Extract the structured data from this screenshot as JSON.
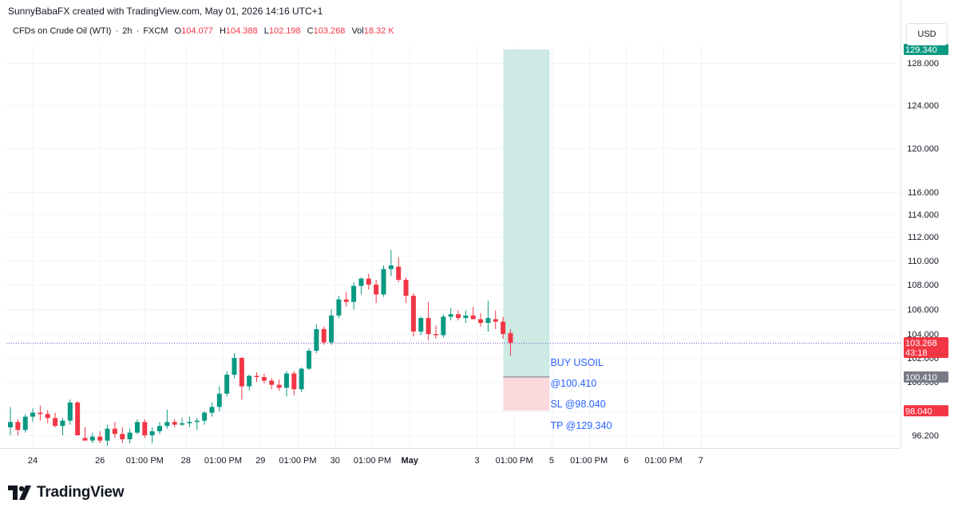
{
  "header": {
    "title": "SunnyBabaFX created with TradingView.com, May 01, 2026 14:16 UTC+1"
  },
  "legend": {
    "symbol": "CFDs on Crude Oil (WTI)",
    "interval": "2h",
    "exchange": "FXCM",
    "open_label": "O",
    "open": "104.077",
    "high_label": "H",
    "high": "104.388",
    "low_label": "L",
    "low": "102.198",
    "close_label": "C",
    "close": "103.268",
    "vol_label": "Vol",
    "vol": "18.32 K"
  },
  "currency_button": "USD",
  "brand": {
    "name": "TradingView"
  },
  "colors": {
    "up": "#089981",
    "down": "#f23645",
    "target_zone": "#cdeae4",
    "stop_zone": "#fbd9dc",
    "annotation": "#2962ff",
    "price_line": "#7e57c2"
  },
  "chart_data": {
    "type": "candlestick",
    "symbol": "USOIL",
    "y_ticks": [
      96.2,
      98.0,
      100.0,
      102.0,
      104.0,
      106.0,
      108.0,
      110.0,
      112.0,
      114.0,
      116.0,
      120.0,
      124.0,
      128.0
    ],
    "y_tick_labels": [
      "96.200",
      "98.000",
      "100.000",
      "102.000",
      "104.000",
      "106.000",
      "108.000",
      "110.000",
      "112.000",
      "114.000",
      "116.000",
      "120.000",
      "124.000",
      "128.000"
    ],
    "x_ticks": [
      {
        "label": "24",
        "bar": 3
      },
      {
        "label": "26",
        "bar": 12
      },
      {
        "label": "01:00 PM",
        "bar": 18
      },
      {
        "label": "28",
        "bar": 23.5
      },
      {
        "label": "01:00 PM",
        "bar": 28.5
      },
      {
        "label": "29",
        "bar": 33.5
      },
      {
        "label": "01:00 PM",
        "bar": 38.5
      },
      {
        "label": "30",
        "bar": 43.5
      },
      {
        "label": "01:00 PM",
        "bar": 48.5
      },
      {
        "label": "May",
        "bar": 53.5,
        "bold": true
      },
      {
        "label": "3",
        "bar": 62.5
      },
      {
        "label": "01:00 PM",
        "bar": 67.5
      },
      {
        "label": "5",
        "bar": 72.5
      },
      {
        "label": "01:00 PM",
        "bar": 77.5
      },
      {
        "label": "6",
        "bar": 82.5
      },
      {
        "label": "01:00 PM",
        "bar": 87.5
      },
      {
        "label": "7",
        "bar": 92.5
      }
    ],
    "candles": [
      [
        96.8,
        98.3,
        96.2,
        97.2
      ],
      [
        97.2,
        97.4,
        96.2,
        96.6
      ],
      [
        96.6,
        97.8,
        96.4,
        97.6
      ],
      [
        97.6,
        98.2,
        97.2,
        97.9
      ],
      [
        97.9,
        98.4,
        97.3,
        97.8
      ],
      [
        97.8,
        98.1,
        97.1,
        97.5
      ],
      [
        97.5,
        97.9,
        96.8,
        96.9
      ],
      [
        96.9,
        97.5,
        96.2,
        97.3
      ],
      [
        97.3,
        98.8,
        97.0,
        98.6
      ],
      [
        98.6,
        98.7,
        96.2,
        96.2
      ],
      [
        96.0,
        96.8,
        95.8,
        95.8
      ],
      [
        95.8,
        96.4,
        95.6,
        96.1
      ],
      [
        96.1,
        96.5,
        95.6,
        95.8
      ],
      [
        95.8,
        97.0,
        95.4,
        96.7
      ],
      [
        96.7,
        97.2,
        96.0,
        96.3
      ],
      [
        96.3,
        96.8,
        95.6,
        95.9
      ],
      [
        95.9,
        96.7,
        95.6,
        96.4
      ],
      [
        96.4,
        97.4,
        96.3,
        97.2
      ],
      [
        97.2,
        97.4,
        96.0,
        96.2
      ],
      [
        96.2,
        96.8,
        95.6,
        96.5
      ],
      [
        96.5,
        97.2,
        96.3,
        96.9
      ],
      [
        96.9,
        98.1,
        96.7,
        97.2
      ],
      [
        97.2,
        97.4,
        96.8,
        97.0
      ],
      [
        97.0,
        97.5,
        96.9,
        97.1
      ],
      [
        97.1,
        97.6,
        96.8,
        97.2
      ],
      [
        97.2,
        97.5,
        96.6,
        97.3
      ],
      [
        97.3,
        98.0,
        97.0,
        97.9
      ],
      [
        97.9,
        98.6,
        97.6,
        98.3
      ],
      [
        98.3,
        99.7,
        98.0,
        99.2
      ],
      [
        99.2,
        100.9,
        99.0,
        100.6
      ],
      [
        100.6,
        102.4,
        100.3,
        102.0
      ],
      [
        102.0,
        102.1,
        98.8,
        99.7
      ],
      [
        99.7,
        100.6,
        99.4,
        100.5
      ],
      [
        100.5,
        100.8,
        100.0,
        100.4
      ],
      [
        100.4,
        100.7,
        99.9,
        100.1
      ],
      [
        100.1,
        100.3,
        99.5,
        99.8
      ],
      [
        99.8,
        100.2,
        99.4,
        99.6
      ],
      [
        99.6,
        100.9,
        99.0,
        100.7
      ],
      [
        100.7,
        100.9,
        99.1,
        99.5
      ],
      [
        99.5,
        101.2,
        99.3,
        101.1
      ],
      [
        101.1,
        102.8,
        101.0,
        102.6
      ],
      [
        102.6,
        104.8,
        102.4,
        104.4
      ],
      [
        104.4,
        104.6,
        103.1,
        103.3
      ],
      [
        103.3,
        106.0,
        103.1,
        105.5
      ],
      [
        105.5,
        107.1,
        105.3,
        106.8
      ],
      [
        106.8,
        107.4,
        106.2,
        106.6
      ],
      [
        106.6,
        108.2,
        106.0,
        107.9
      ],
      [
        107.9,
        108.6,
        107.2,
        108.5
      ],
      [
        108.5,
        108.9,
        107.6,
        108.0
      ],
      [
        108.0,
        108.4,
        106.5,
        107.2
      ],
      [
        107.2,
        109.6,
        107.0,
        109.3
      ],
      [
        109.3,
        110.9,
        108.7,
        109.6
      ],
      [
        109.5,
        110.3,
        108.2,
        108.4
      ],
      [
        108.4,
        108.6,
        106.5,
        107.1
      ],
      [
        107.1,
        107.3,
        103.8,
        104.2
      ],
      [
        104.2,
        105.4,
        103.9,
        105.3
      ],
      [
        105.3,
        106.6,
        103.5,
        104.0
      ],
      [
        104.0,
        104.7,
        103.6,
        103.9
      ],
      [
        103.9,
        105.6,
        103.7,
        105.4
      ],
      [
        105.4,
        106.1,
        105.1,
        105.6
      ],
      [
        105.6,
        105.9,
        105.1,
        105.3
      ],
      [
        105.3,
        105.9,
        104.9,
        105.5
      ],
      [
        105.5,
        106.2,
        105.2,
        105.2
      ],
      [
        105.2,
        105.7,
        104.6,
        104.9
      ],
      [
        104.9,
        106.7,
        104.2,
        105.3
      ],
      [
        105.2,
        105.9,
        104.4,
        105.0
      ],
      [
        105.0,
        105.4,
        103.6,
        104.0
      ],
      [
        104.077,
        104.388,
        102.198,
        103.268
      ]
    ],
    "current_price": 103.268,
    "countdown": "43:18",
    "position": {
      "type": "long",
      "entry": 100.41,
      "entry_label": "100.410",
      "stop": 98.04,
      "stop_label": "98.040",
      "target": 129.34,
      "target_label": "129.340"
    },
    "annotations": [
      "BUY USOIL",
      "@100.410",
      "SL @98.040",
      "TP @129.340"
    ]
  }
}
